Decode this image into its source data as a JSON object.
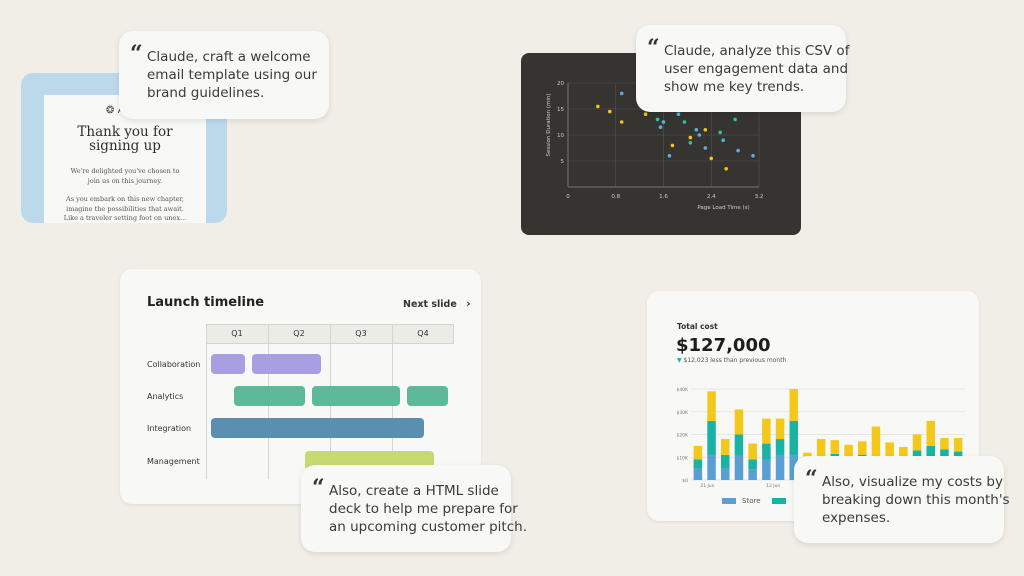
{
  "email_card": {
    "logo_text": "A",
    "heading_line1": "Thank you for",
    "heading_line2": "signing up",
    "p1_line1": "We're delighted you've chosen to",
    "p1_line2": "join us on this journey.",
    "p2_line1": "As you embark on this new chapter,",
    "p2_line2": "imagine the possibilities that await.",
    "p2_line3": "Like a traveler setting foot on unex..."
  },
  "bubbles": {
    "email": [
      "Claude, craft a welcome",
      "email template using our",
      "brand guidelines."
    ],
    "csv": [
      "Claude, analyze this CSV of",
      "user engagement data and",
      "show me key trends."
    ],
    "slides": [
      "Also, create a HTML slide",
      "deck to help me prepare for",
      "an upcoming customer pitch."
    ],
    "costs": [
      "Also, visualize my costs by",
      "breaking down this month's",
      "expenses."
    ]
  },
  "scatter_chart": {
    "xlabel": "Page Load Time (s)",
    "ylabel": "Session Duration (min)",
    "colors": {
      "blue": "#5aaee6",
      "yellow": "#f2c318",
      "teal": "#2cc39a",
      "bg": "#363430"
    }
  },
  "timeline": {
    "title": "Launch timeline",
    "next_label": "Next slide",
    "quarters": [
      "Q1",
      "Q2",
      "Q3",
      "Q4"
    ],
    "rows": [
      "Collaboration",
      "Analytics",
      "Integration",
      "Management"
    ],
    "colors": {
      "collaboration": "#a89fe3",
      "analytics": "#5eb89a",
      "integration": "#5b8fb0",
      "management": "#c7da70"
    }
  },
  "cost_card": {
    "label": "Total cost",
    "amount": "$127,000",
    "delta": "$12,023 less than previous month",
    "legend": [
      "Store",
      ""
    ],
    "colors": {
      "store": "#5a9fd4",
      "teal": "#19b3a6",
      "yellow": "#f2c81a"
    }
  },
  "chart_data": [
    {
      "type": "scatter",
      "xlabel": "Page Load Time (s)",
      "ylabel": "Session Duration (min)",
      "x_ticks": [
        "0",
        "0.8",
        "1.6",
        "2.4",
        "3.2"
      ],
      "y_ticks": [
        "5",
        "10",
        "15",
        "20"
      ],
      "xlim": [
        0,
        3.2
      ],
      "ylim": [
        0,
        20
      ],
      "grid": true,
      "series": [
        {
          "color": "#5aaee6",
          "points": [
            [
              0.9,
              18
            ],
            [
              1.6,
              12.5
            ],
            [
              1.55,
              11.5
            ],
            [
              1.85,
              14
            ],
            [
              2.15,
              11
            ],
            [
              2.2,
              10
            ],
            [
              2.6,
              9
            ],
            [
              2.85,
              7
            ],
            [
              3.1,
              6
            ],
            [
              2.3,
              7.5
            ],
            [
              1.7,
              6
            ]
          ]
        },
        {
          "color": "#f2c318",
          "points": [
            [
              0.5,
              15.5
            ],
            [
              0.7,
              14.5
            ],
            [
              0.9,
              12.5
            ],
            [
              1.3,
              14
            ],
            [
              1.75,
              8
            ],
            [
              2.05,
              9.5
            ],
            [
              2.3,
              11
            ],
            [
              2.4,
              5.5
            ],
            [
              2.65,
              3.5
            ]
          ]
        },
        {
          "color": "#2cc39a",
          "points": [
            [
              1.5,
              13
            ],
            [
              1.95,
              12.5
            ],
            [
              2.05,
              8.5
            ],
            [
              2.55,
              10.5
            ],
            [
              2.8,
              13
            ]
          ]
        }
      ]
    },
    {
      "type": "bar",
      "title": "Total cost",
      "y_ticks": [
        "$0",
        "$10K",
        "$20K",
        "$30K",
        "$40K"
      ],
      "x_ticks": [
        "21 Jun",
        "12 Jun"
      ],
      "ylim": [
        0,
        40000
      ],
      "series": [
        {
          "name": "Store",
          "values": [
            5000,
            11000,
            5000,
            11000,
            4500,
            9000,
            11000,
            11000,
            3000,
            5000,
            4500,
            4000,
            5000,
            4500,
            5000,
            3500,
            5500,
            7000,
            5500,
            5000
          ]
        },
        {
          "values": [
            4000,
            15000,
            6000,
            9000,
            4500,
            7000,
            7000,
            15000,
            3000,
            4000,
            7000,
            4000,
            6000,
            6000,
            5500,
            5500,
            7500,
            8000,
            8000,
            7500
          ]
        },
        {
          "values": [
            6000,
            13000,
            7000,
            11000,
            7000,
            11000,
            9000,
            14000,
            6000,
            9000,
            6000,
            7500,
            6000,
            13000,
            6000,
            5500,
            7000,
            11000,
            5000,
            6000
          ]
        }
      ]
    }
  ]
}
